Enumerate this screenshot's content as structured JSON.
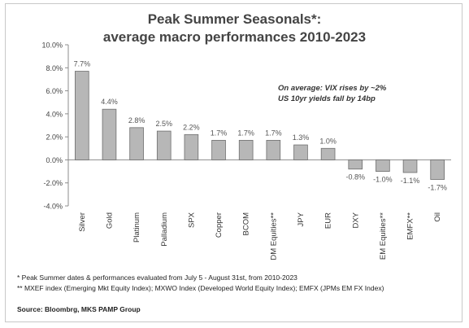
{
  "chart_data": {
    "type": "bar",
    "title": "Peak Summer Seasonals*:",
    "subtitle": "average macro performances 2010-2023",
    "categories": [
      "Silver",
      "Gold",
      "Platinum",
      "Palladium",
      "SPX",
      "Copper",
      "BCOM",
      "DM Equities**",
      "JPY",
      "EUR",
      "DXY",
      "EM Equities**",
      "EMFX**",
      "Oil"
    ],
    "values": [
      7.7,
      4.4,
      2.8,
      2.5,
      2.2,
      1.7,
      1.7,
      1.7,
      1.3,
      1.0,
      -0.8,
      -1.0,
      -1.1,
      -1.7
    ],
    "data_labels": [
      "7.7%",
      "4.4%",
      "2.8%",
      "2.5%",
      "2.2%",
      "1.7%",
      "1.7%",
      "1.7%",
      "1.3%",
      "1.0%",
      "-0.8%",
      "-1.0%",
      "-1.1%",
      "-1.7%"
    ],
    "yticks": [
      10,
      8,
      6,
      4,
      2,
      0,
      -2,
      -4
    ],
    "ytick_labels": [
      "10.0%",
      "8.0%",
      "6.0%",
      "4.0%",
      "2.0%",
      "0.0%",
      "-2.0%",
      "-4.0%"
    ],
    "ylim": [
      -4,
      10
    ],
    "grid": false,
    "bar_color": "#b7b7b7",
    "bar_edge": "#6e6e6e",
    "annotation": [
      "On average: VIX rises by ~2%",
      "US 10yr yields fall by 14bp"
    ]
  },
  "footnotes": [
    "* Peak Summer dates & performances evaluated  from July 5 - August 31st, from 2010-2023",
    "** MXEF index (Emerging Mkt Equity Index); MXWO Index (Developed World Equity Index); EMFX (JPMs EM FX Index)"
  ],
  "source": "Source: Bloombrg, MKS PAMP Group"
}
